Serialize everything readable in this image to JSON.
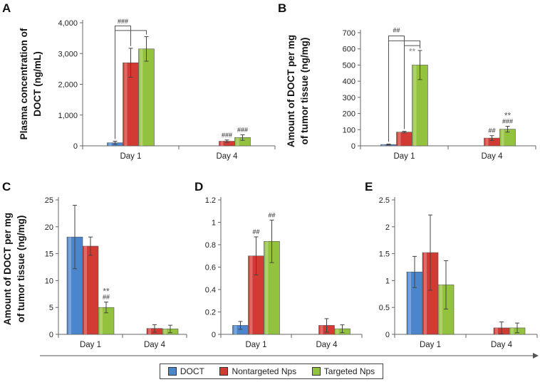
{
  "colors": {
    "DOCT": "#4b86cc",
    "Nontargeted Nps": "#d23a34",
    "Targeted Nps": "#93c23e"
  },
  "legend": [
    {
      "label": "DOCT",
      "color": "#4b86cc"
    },
    {
      "label": "Nontargeted Nps",
      "color": "#d23a34"
    },
    {
      "label": "Targeted  Nps",
      "color": "#93c23e"
    }
  ],
  "chart_data": [
    {
      "id": "A",
      "type": "bar",
      "panel_label": "A",
      "ylabel": [
        "Plasma concentration of",
        "DOCT (ng/mL)"
      ],
      "categories": [
        "Day 1",
        "Day 4"
      ],
      "ylim": [
        0,
        4000
      ],
      "yticks": [
        0,
        1000,
        2000,
        3000,
        4000
      ],
      "ytick_labels": [
        "0",
        "1,000",
        "2,000",
        "3,000",
        "4,000"
      ],
      "series": [
        {
          "name": "DOCT",
          "values": [
            100,
            0
          ],
          "errors": [
            50,
            0
          ]
        },
        {
          "name": "Nontargeted Nps",
          "values": [
            2700,
            150
          ],
          "errors": [
            470,
            40
          ]
        },
        {
          "name": "Targeted Nps",
          "values": [
            3150,
            270
          ],
          "errors": [
            400,
            90
          ]
        }
      ],
      "bar_annotations": [
        {
          "series": 1,
          "cat": 1,
          "lines": [
            "###"
          ]
        },
        {
          "series": 2,
          "cat": 1,
          "lines": [
            "###"
          ]
        }
      ],
      "brackets": [
        {
          "from": [
            0,
            0
          ],
          "to": [
            1,
            0
          ],
          "y": 3900,
          "label": "###",
          "label_y": 4050
        },
        {
          "from": [
            0,
            0
          ],
          "to": [
            2,
            0
          ],
          "y": 3750
        }
      ]
    },
    {
      "id": "B",
      "type": "bar",
      "panel_label": "B",
      "ylabel": [
        "Amount of DOCT per mg",
        "of tumor tissue (ng/mg)"
      ],
      "categories": [
        "Day 1",
        "Day 4"
      ],
      "ylim": [
        0,
        700
      ],
      "yticks": [
        0,
        100,
        200,
        300,
        400,
        500,
        600,
        700
      ],
      "ytick_labels": [
        "0",
        "100",
        "200",
        "300",
        "400",
        "500",
        "600",
        "700"
      ],
      "series": [
        {
          "name": "DOCT",
          "values": [
            8,
            0
          ],
          "errors": [
            3,
            0
          ]
        },
        {
          "name": "Nontargeted Nps",
          "values": [
            85,
            48
          ],
          "errors": [
            5,
            15
          ]
        },
        {
          "name": "Targeted Nps",
          "values": [
            500,
            103
          ],
          "errors": [
            90,
            18
          ]
        }
      ],
      "bar_annotations": [
        {
          "series": 1,
          "cat": 1,
          "lines": [
            "##"
          ]
        },
        {
          "series": 2,
          "cat": 1,
          "lines": [
            "**",
            "###"
          ]
        }
      ],
      "brackets": [
        {
          "from": [
            0,
            0
          ],
          "to": [
            1,
            0
          ],
          "y": 680,
          "label": "##",
          "label_y": 715
        },
        {
          "from": [
            0,
            0
          ],
          "to": [
            2,
            0
          ],
          "y": 650
        },
        {
          "from": [
            1,
            0
          ],
          "to": [
            2,
            0
          ],
          "y": 620,
          "label": "**",
          "label_y": 580,
          "label_color": "#888"
        }
      ]
    },
    {
      "id": "C",
      "type": "bar",
      "panel_label": "C",
      "ylabel": [
        "Amount of DOCT per mg",
        "of tumor tissue (ng/mg)"
      ],
      "categories": [
        "Day 1",
        "Day 4"
      ],
      "ylim": [
        0,
        25
      ],
      "yticks": [
        0,
        5,
        10,
        15,
        20,
        25
      ],
      "ytick_labels": [
        "0",
        "5",
        "10",
        "15",
        "20",
        "25"
      ],
      "series": [
        {
          "name": "DOCT",
          "values": [
            18.1,
            0
          ],
          "errors": [
            5.9,
            0
          ]
        },
        {
          "name": "Nontargeted Nps",
          "values": [
            16.4,
            1.1
          ],
          "errors": [
            1.7,
            0.7
          ]
        },
        {
          "name": "Targeted Nps",
          "values": [
            5.0,
            1.0
          ],
          "errors": [
            1.0,
            0.7
          ]
        }
      ],
      "bar_annotations": [
        {
          "series": 2,
          "cat": 0,
          "lines": [
            "**",
            "##"
          ]
        }
      ],
      "brackets": []
    },
    {
      "id": "D",
      "type": "bar",
      "panel_label": "D",
      "ylabel": [],
      "categories": [
        "Day 1",
        "Day 4"
      ],
      "ylim": [
        0,
        1.2
      ],
      "yticks": [
        0,
        0.2,
        0.4,
        0.6,
        0.8,
        1.0,
        1.2
      ],
      "ytick_labels": [
        "0",
        "0.2",
        "0.4",
        "0.6",
        "0.8",
        "1",
        "1.2"
      ],
      "series": [
        {
          "name": "DOCT",
          "values": [
            0.08,
            0
          ],
          "errors": [
            0.035,
            0
          ]
        },
        {
          "name": "Nontargeted Nps",
          "values": [
            0.7,
            0.08
          ],
          "errors": [
            0.17,
            0.06
          ]
        },
        {
          "name": "Targeted Nps",
          "values": [
            0.83,
            0.05
          ],
          "errors": [
            0.19,
            0.035
          ]
        }
      ],
      "bar_annotations": [
        {
          "series": 1,
          "cat": 0,
          "lines": [
            "##"
          ]
        },
        {
          "series": 2,
          "cat": 0,
          "lines": [
            "##"
          ]
        }
      ],
      "brackets": []
    },
    {
      "id": "E",
      "type": "bar",
      "panel_label": "E",
      "ylabel": [],
      "categories": [
        "Day 1",
        "Day 4"
      ],
      "ylim": [
        0,
        2.5
      ],
      "yticks": [
        0,
        0.5,
        1.0,
        1.5,
        2.0,
        2.5
      ],
      "ytick_labels": [
        "0",
        "0.5",
        "1",
        "1.5",
        "2",
        "2.5"
      ],
      "series": [
        {
          "name": "DOCT",
          "values": [
            1.16,
            0
          ],
          "errors": [
            0.29,
            0
          ]
        },
        {
          "name": "Nontargeted Nps",
          "values": [
            1.52,
            0.12
          ],
          "errors": [
            0.7,
            0.11
          ]
        },
        {
          "name": "Targeted Nps",
          "values": [
            0.92,
            0.12
          ],
          "errors": [
            0.45,
            0.09
          ]
        }
      ],
      "bar_annotations": [],
      "brackets": []
    }
  ]
}
